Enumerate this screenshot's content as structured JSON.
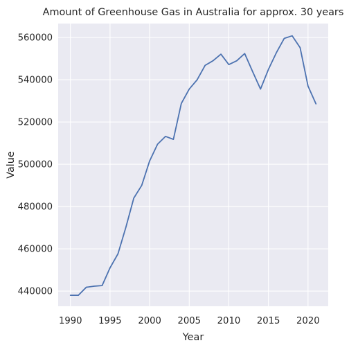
{
  "chart_data": {
    "type": "line",
    "title": "Amount of Greenhouse Gas in Australia for approx. 30 years",
    "xlabel": "Year",
    "ylabel": "Value",
    "xlim": [
      1988.45,
      2022.55
    ],
    "ylim": [
      432800,
      566600
    ],
    "x_ticks": [
      1990,
      1995,
      2000,
      2005,
      2010,
      2015,
      2020
    ],
    "x_tick_labels": [
      "1990",
      "1995",
      "2000",
      "2005",
      "2010",
      "2015",
      "2020"
    ],
    "y_ticks": [
      440000,
      460000,
      480000,
      500000,
      520000,
      540000,
      560000
    ],
    "y_tick_labels": [
      "440000",
      "460000",
      "480000",
      "500000",
      "520000",
      "540000",
      "560000"
    ],
    "grid": true,
    "colors": {
      "background": "#eaeaf2",
      "grid": "#ffffff",
      "line": "#4c72b0"
    },
    "series": [
      {
        "x": [
          1990,
          1991,
          1992,
          1993,
          1994,
          1995,
          1996,
          1997,
          1998,
          1999,
          2000,
          2001,
          2002,
          2003,
          2004,
          2005,
          2006,
          2007,
          2008,
          2009,
          2010,
          2011,
          2012,
          2013,
          2014,
          2015,
          2016,
          2017,
          2018,
          2019,
          2020,
          2021
        ],
        "values": [
          438000,
          438000,
          441800,
          442300,
          442600,
          451000,
          457600,
          470200,
          484000,
          490000,
          501600,
          509500,
          513200,
          511800,
          528800,
          535600,
          540000,
          546800,
          549000,
          552100,
          547200,
          549000,
          552400,
          543900,
          535600,
          544900,
          552800,
          559600,
          560800,
          555200,
          537000,
          528600
        ]
      }
    ]
  }
}
